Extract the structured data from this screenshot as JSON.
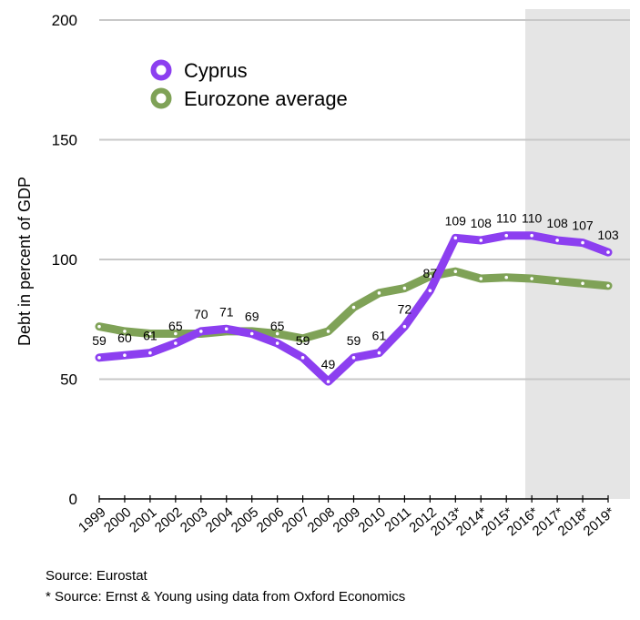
{
  "chart_data": {
    "type": "line",
    "title": "",
    "ylabel": "Debt in percent of GDP",
    "xlabel": "",
    "ylim": [
      0,
      200
    ],
    "yticks": [
      0,
      50,
      100,
      150,
      200
    ],
    "grid": true,
    "legend_position": "top-left",
    "forecast_region_start": "2016*",
    "categories": [
      "1999",
      "2000",
      "2001",
      "2002",
      "2003",
      "2004",
      "2005",
      "2006",
      "2007",
      "2008",
      "2009",
      "2010",
      "2011",
      "2012",
      "2013*",
      "2014*",
      "2015*",
      "2016*",
      "2017*",
      "2018*",
      "2019*"
    ],
    "series": [
      {
        "name": "Cyprus",
        "color": "#8c3ff0",
        "values": [
          59,
          60,
          61,
          65,
          70,
          71,
          69,
          65,
          59,
          49,
          59,
          61,
          72,
          87,
          109,
          108,
          110,
          110,
          108,
          107,
          103
        ],
        "data_labels": [
          "59",
          "60",
          "61",
          "65",
          "70",
          "71",
          "69",
          "65",
          "59",
          "49",
          "59",
          "61",
          "72",
          "87",
          "109",
          "108",
          "110",
          "110",
          "108",
          "107",
          "103"
        ]
      },
      {
        "name": "Eurozone average",
        "color": "#7fa257",
        "values": [
          72,
          70,
          69,
          69,
          69,
          70,
          70,
          69,
          67,
          70,
          80,
          86,
          88,
          93,
          95,
          92,
          92.5,
          92,
          91,
          90,
          89
        ]
      }
    ]
  },
  "sources": [
    "Source: Eurostat",
    "* Source: Ernst & Young using data from Oxford Economics"
  ]
}
